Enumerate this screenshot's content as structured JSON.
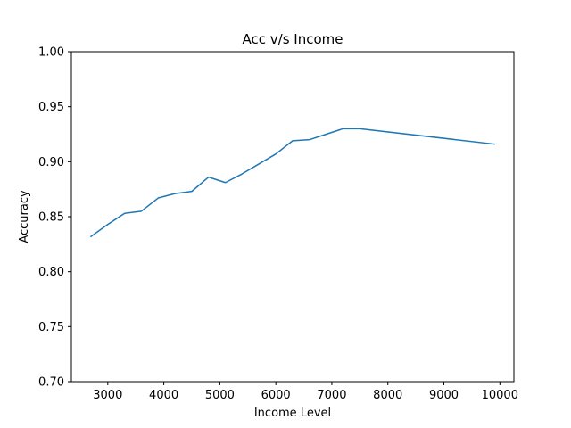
{
  "chart_data": {
    "type": "line",
    "title": "Acc v/s Income",
    "xlabel": "Income Level",
    "ylabel": "Accuracy",
    "xlim": [
      2350,
      10250
    ],
    "ylim": [
      0.7,
      1.0
    ],
    "xticks": [
      3000,
      4000,
      5000,
      6000,
      7000,
      8000,
      9000,
      10000
    ],
    "xtick_labels": [
      "3000",
      "4000",
      "5000",
      "6000",
      "7000",
      "8000",
      "9000",
      "10000"
    ],
    "yticks": [
      0.7,
      0.75,
      0.8,
      0.85,
      0.9,
      0.95,
      1.0
    ],
    "ytick_labels": [
      "0.70",
      "0.75",
      "0.80",
      "0.85",
      "0.90",
      "0.95",
      "1.00"
    ],
    "grid": false,
    "series": [
      {
        "color": "#1f77b4",
        "x": [
          2700,
          3000,
          3300,
          3600,
          3900,
          4200,
          4500,
          4800,
          5100,
          5400,
          5700,
          6000,
          6300,
          6600,
          6900,
          7200,
          7500,
          9900
        ],
        "y": [
          0.832,
          0.843,
          0.853,
          0.855,
          0.867,
          0.871,
          0.873,
          0.886,
          0.881,
          0.889,
          0.898,
          0.907,
          0.919,
          0.92,
          0.925,
          0.93,
          0.93,
          0.916
        ]
      }
    ]
  }
}
